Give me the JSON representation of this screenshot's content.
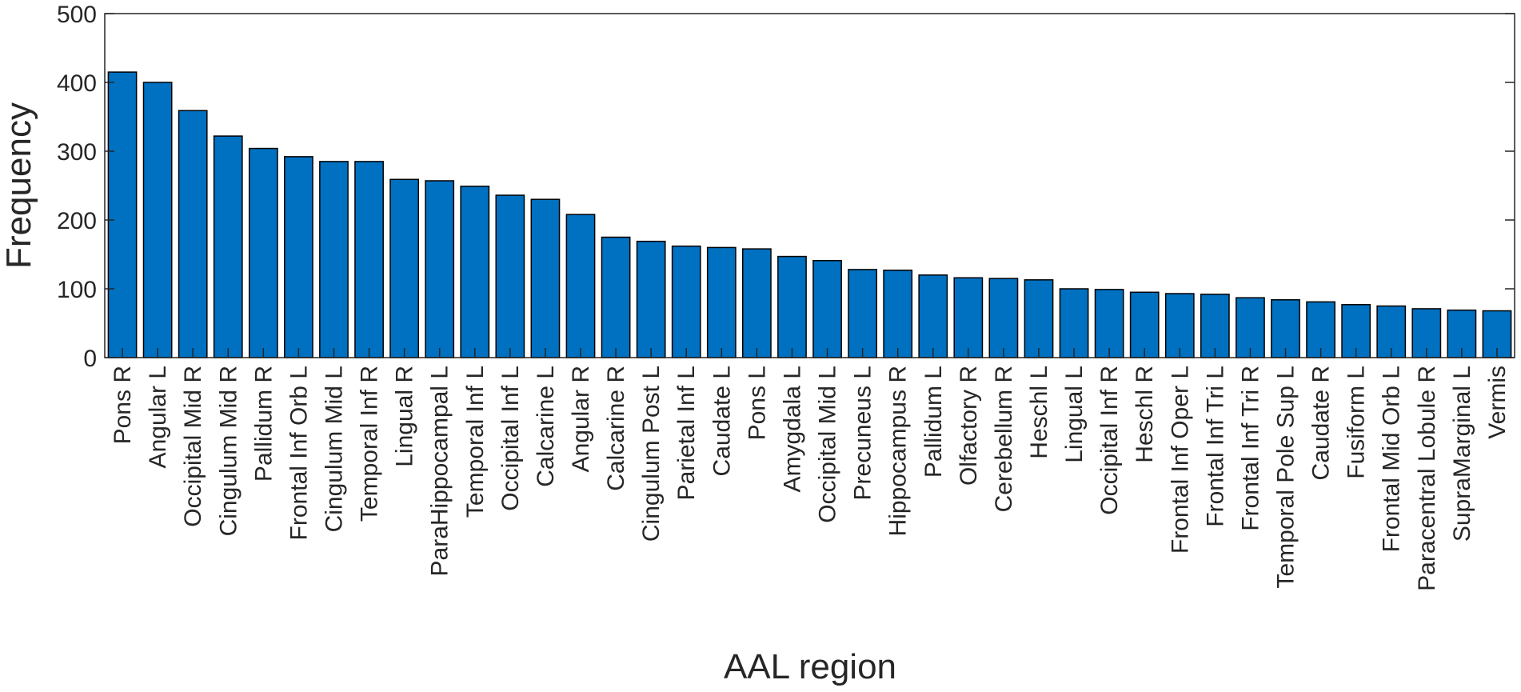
{
  "chart_data": {
    "type": "bar",
    "title": "",
    "xlabel": "AAL region",
    "ylabel": "Frequency",
    "ylim": [
      0,
      500
    ],
    "yticks": [
      0,
      100,
      200,
      300,
      400,
      500
    ],
    "grid": false,
    "bar_color": "#0070C0",
    "categories": [
      "Pons R",
      "Angular L",
      "Occipital Mid R",
      "Cingulum Mid R",
      "Pallidum R",
      "Frontal Inf Orb L",
      "Cingulum Mid L",
      "Temporal Inf R",
      "Lingual R",
      "ParaHippocampal L",
      "Temporal Inf L",
      "Occipital Inf L",
      "Calcarine L",
      "Angular R",
      "Calcarine R",
      "Cingulum Post L",
      "Parietal Inf L",
      "Caudate L",
      "Pons L",
      "Amygdala L",
      "Occipital Mid L",
      "Precuneus L",
      "Hippocampus R",
      "Pallidum L",
      "Olfactory R",
      "Cerebellum R",
      "Heschl L",
      "Lingual L",
      "Occipital Inf R",
      "Heschl R",
      "Frontal Inf Oper L",
      "Frontal Inf Tri L",
      "Frontal Inf Tri R",
      "Temporal Pole Sup L",
      "Caudate R",
      "Fusiform L",
      "Frontal Mid Orb L",
      "Paracentral Lobule R",
      "SupraMarginal L",
      "Vermis"
    ],
    "values": [
      415,
      400,
      359,
      322,
      304,
      292,
      285,
      285,
      259,
      257,
      249,
      236,
      230,
      208,
      175,
      169,
      162,
      160,
      158,
      147,
      141,
      128,
      127,
      120,
      116,
      115,
      113,
      100,
      99,
      95,
      93,
      92,
      87,
      84,
      81,
      77,
      75,
      71,
      69,
      68
    ]
  }
}
